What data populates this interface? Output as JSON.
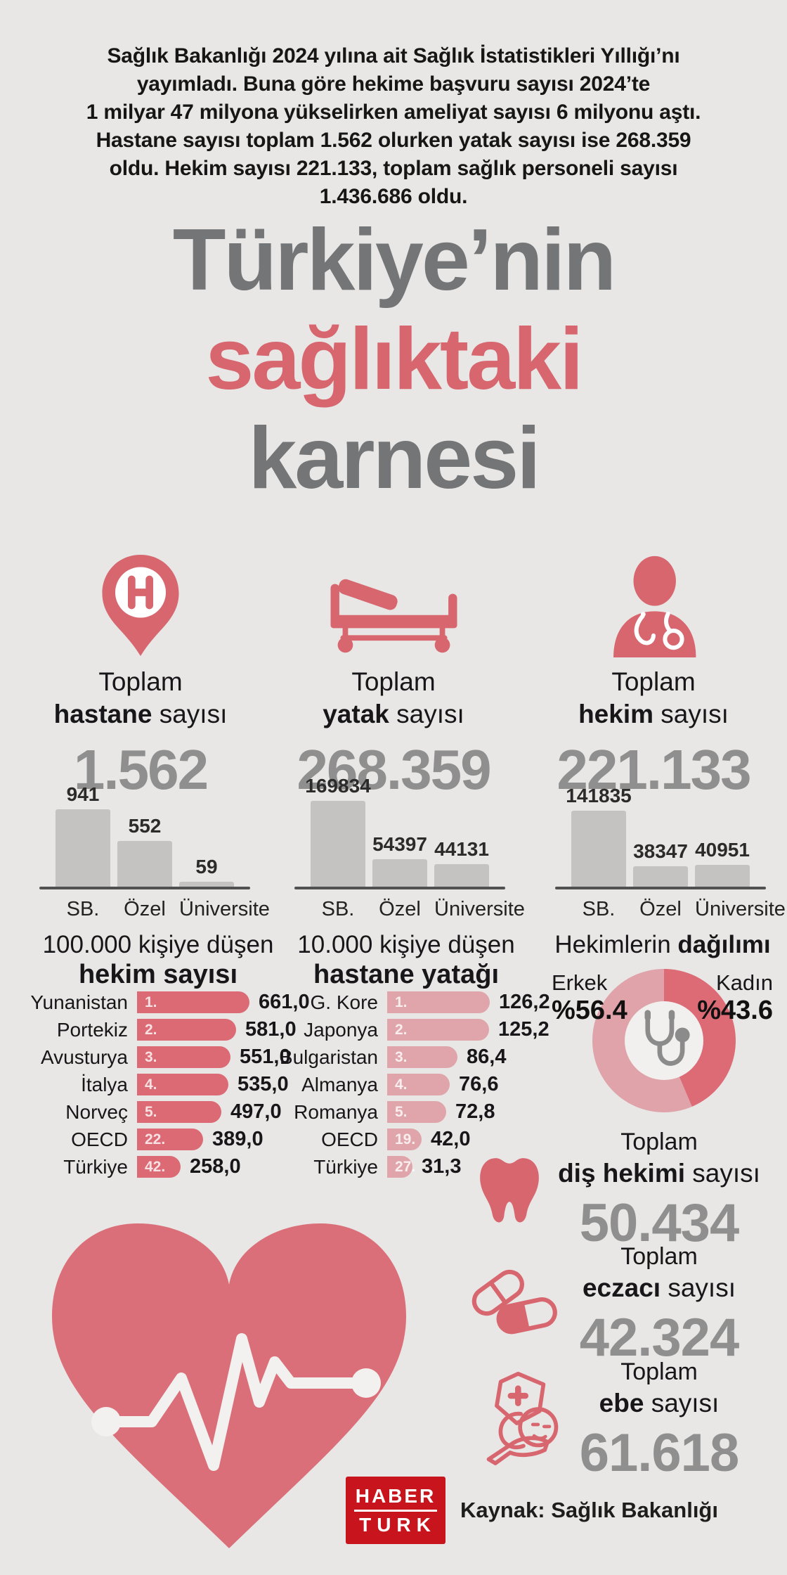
{
  "header": {
    "lines": [
      "Sağlık Bakanlığı 2024 yılına ait Sağlık İstatistikleri Yıllığı’nı",
      "yayımladı. Buna göre hekime başvuru sayısı 2024’te",
      "1 milyar 47 milyona yükselirken ameliyat sayısı 6 milyonu aştı.",
      "Hastane sayısı toplam 1.562 olurken yatak sayısı ise 268.359",
      "oldu. Hekim sayısı 221.133, toplam sağlık personeli sayısı",
      "1.436.686 oldu."
    ]
  },
  "title": {
    "line1": "Türkiye’nin",
    "line2": "sağlıktaki",
    "line3": "karnesi"
  },
  "stats": [
    {
      "icon": "hospital-pin-icon",
      "label_top": "Toplam",
      "label_bold": "hastane",
      "label_rest": " sayısı",
      "value": "1.562"
    },
    {
      "icon": "hospital-bed-icon",
      "label_top": "Toplam",
      "label_bold": "yatak",
      "label_rest": " sayısı",
      "value": "268.359"
    },
    {
      "icon": "doctor-icon",
      "label_top": "Toplam",
      "label_bold": "hekim",
      "label_rest": " sayısı",
      "value": "221.133"
    }
  ],
  "mini_charts": [
    {
      "categories": [
        "SB.",
        "Özel",
        "Üniversite"
      ],
      "values": [
        941,
        552,
        59
      ],
      "value_labels": [
        "941",
        "552",
        "59"
      ]
    },
    {
      "categories": [
        "SB.",
        "Özel",
        "Üniversite"
      ],
      "values": [
        169834,
        54397,
        44131
      ],
      "value_labels": [
        "169834",
        "54397",
        "44131"
      ]
    },
    {
      "categories": [
        "SB.",
        "Özel",
        "Üniversite"
      ],
      "values": [
        141835,
        38347,
        40951
      ],
      "value_labels": [
        "141835",
        "38347",
        "40951"
      ]
    }
  ],
  "rank_charts": [
    {
      "title_line1": "100.000 kişiye düşen",
      "title_line2": "hekim sayısı",
      "rows": [
        {
          "label": "Yunanistan",
          "rank": "1.",
          "value": 661.0,
          "value_label": "661,0"
        },
        {
          "label": "Portekiz",
          "rank": "2.",
          "value": 581.0,
          "value_label": "581,0"
        },
        {
          "label": "Avusturya",
          "rank": "3.",
          "value": 551.0,
          "value_label": "551,0"
        },
        {
          "label": "İtalya",
          "rank": "4.",
          "value": 535.0,
          "value_label": "535,0"
        },
        {
          "label": "Norveç",
          "rank": "5.",
          "value": 497.0,
          "value_label": "497,0"
        },
        {
          "label": "OECD",
          "rank": "22.",
          "value": 389.0,
          "value_label": "389,0"
        },
        {
          "label": "Türkiye",
          "rank": "42.",
          "value": 258.0,
          "value_label": "258,0"
        }
      ]
    },
    {
      "title_line1": "10.000 kişiye düşen",
      "title_line2": "hastane yatağı",
      "rows": [
        {
          "label": "G. Kore",
          "rank": "1.",
          "value": 126.2,
          "value_label": "126,2"
        },
        {
          "label": "Japonya",
          "rank": "2.",
          "value": 125.2,
          "value_label": "125,2"
        },
        {
          "label": "Bulgaristan",
          "rank": "3.",
          "value": 86.4,
          "value_label": "86,4"
        },
        {
          "label": "Almanya",
          "rank": "4.",
          "value": 76.6,
          "value_label": "76,6"
        },
        {
          "label": "Romanya",
          "rank": "5.",
          "value": 72.8,
          "value_label": "72,8"
        },
        {
          "label": "OECD",
          "rank": "19.",
          "value": 42.0,
          "value_label": "42,0"
        },
        {
          "label": "Türkiye",
          "rank": "27.",
          "value": 31.3,
          "value_label": "31,3"
        }
      ]
    }
  ],
  "donut": {
    "title_normal": "Hekimlerin ",
    "title_bold": "dağılımı",
    "slices": [
      {
        "label": "Erkek",
        "pct_label": "%56.4",
        "value": 56.4,
        "color": "#dfa3a9"
      },
      {
        "label": "Kadın",
        "pct_label": "%43.6",
        "value": 43.6,
        "color": "#dc6b76"
      }
    ]
  },
  "totals": [
    {
      "icon": "tooth-icon",
      "label_top": "Toplam",
      "label_bold": "diş hekimi",
      "label_rest": " sayısı",
      "value": "50.434"
    },
    {
      "icon": "pills-icon",
      "label_top": "Toplam",
      "label_bold": "eczacı",
      "label_rest": " sayısı",
      "value": "42.324"
    },
    {
      "icon": "midwife-icon",
      "label_top": "Toplam",
      "label_bold": "ebe",
      "label_rest": " sayısı",
      "value": "61.618"
    }
  ],
  "footer": {
    "logo_line1": "HABER",
    "logo_line2": "TURK",
    "source": "Kaynak: Sağlık Bakanlığı"
  },
  "colors": {
    "background": "#e8e7e5",
    "accent_red": "#d7666f",
    "bar_red": "#dc6a74",
    "bar_pink": "#dfa5aa",
    "donut_kadin": "#dc6b76",
    "donut_erkek": "#dfa3a9",
    "title_gray": "#737577",
    "big_number_gray": "#8f8f8f",
    "mini_bar_gray": "#c4c3c1",
    "logo_red": "#c8141c",
    "dark_text": "#161616"
  },
  "chart_data": [
    {
      "type": "bar",
      "title": "Toplam hastane sayısı dağılımı",
      "categories": [
        "SB.",
        "Özel",
        "Üniversite"
      ],
      "values": [
        941,
        552,
        59
      ],
      "ylabel": "hastane"
    },
    {
      "type": "bar",
      "title": "Toplam yatak sayısı dağılımı",
      "categories": [
        "SB.",
        "Özel",
        "Üniversite"
      ],
      "values": [
        169834,
        54397,
        44131
      ],
      "ylabel": "yatak"
    },
    {
      "type": "bar",
      "title": "Toplam hekim sayısı dağılımı",
      "categories": [
        "SB.",
        "Özel",
        "Üniversite"
      ],
      "values": [
        141835,
        38347,
        40951
      ],
      "ylabel": "hekim"
    },
    {
      "type": "bar",
      "orientation": "horizontal",
      "title": "100.000 kişiye düşen hekim sayısı",
      "categories": [
        "Yunanistan",
        "Portekiz",
        "Avusturya",
        "İtalya",
        "Norveç",
        "OECD",
        "Türkiye"
      ],
      "values": [
        661.0,
        581.0,
        551.0,
        535.0,
        497.0,
        389.0,
        258.0
      ],
      "ranks": [
        "1.",
        "2.",
        "3.",
        "4.",
        "5.",
        "22.",
        "42."
      ]
    },
    {
      "type": "bar",
      "orientation": "horizontal",
      "title": "10.000 kişiye düşen hastane yatağı",
      "categories": [
        "G. Kore",
        "Japonya",
        "Bulgaristan",
        "Almanya",
        "Romanya",
        "OECD",
        "Türkiye"
      ],
      "values": [
        126.2,
        125.2,
        86.4,
        76.6,
        72.8,
        42.0,
        31.3
      ],
      "ranks": [
        "1.",
        "2.",
        "3.",
        "4.",
        "5.",
        "19.",
        "27."
      ]
    },
    {
      "type": "pie",
      "title": "Hekimlerin dağılımı",
      "labels": [
        "Erkek",
        "Kadın"
      ],
      "values": [
        56.4,
        43.6
      ],
      "donut": true
    }
  ]
}
